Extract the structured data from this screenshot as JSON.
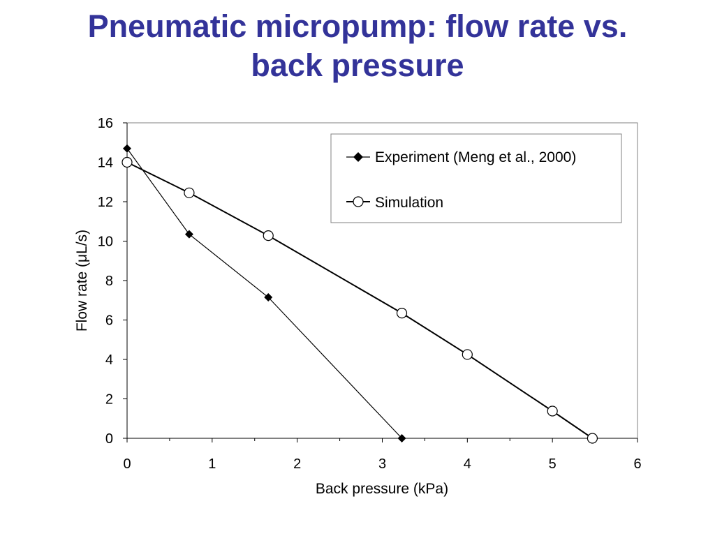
{
  "slide": {
    "title_line1": "Pneumatic micropump: flow rate vs.",
    "title_line2": "back pressure"
  },
  "chart_data": {
    "type": "scatter",
    "title": "Pneumatic micropump: flow rate vs. back pressure",
    "xlabel": "Back pressure (kPa)",
    "ylabel": "Flow rate (μL/s)",
    "xlim": [
      0,
      6
    ],
    "ylim": [
      0,
      16
    ],
    "x_ticks": [
      0,
      1,
      2,
      3,
      4,
      5,
      6
    ],
    "y_ticks": [
      0,
      2,
      4,
      6,
      8,
      10,
      12,
      14,
      16
    ],
    "grid": false,
    "legend_position": "top-right",
    "series": [
      {
        "name": "Experiment (Meng et al., 2000)",
        "marker": "filled-diamond",
        "line": "thin",
        "color": "#000000",
        "x": [
          0,
          0.73,
          1.66,
          3.23
        ],
        "y": [
          14.7,
          10.35,
          7.15,
          0.0
        ]
      },
      {
        "name": "Simulation",
        "marker": "open-circle",
        "line": "thick",
        "color": "#000000",
        "x": [
          0,
          0.73,
          1.66,
          3.23,
          4.0,
          5.0,
          5.47
        ],
        "y": [
          14.0,
          12.45,
          10.28,
          6.35,
          4.25,
          1.38,
          0.0
        ]
      }
    ]
  }
}
